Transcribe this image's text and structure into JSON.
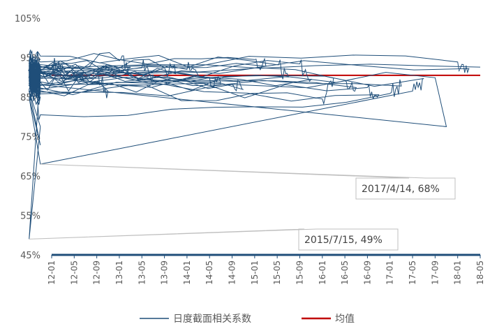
{
  "chart_data": {
    "type": "line",
    "x_tick_labels": [
      "12-01",
      "12-05",
      "12-09",
      "13-01",
      "13-05",
      "13-09",
      "14-01",
      "14-05",
      "14-09",
      "15-01",
      "15-05",
      "15-09",
      "16-01",
      "16-05",
      "16-09",
      "17-01",
      "17-05",
      "17-09",
      "18-01",
      "18-05"
    ],
    "y_tick_labels": [
      "45%",
      "55%",
      "65%",
      "75%",
      "85%",
      "95%",
      "105%"
    ],
    "ylim": [
      45,
      105
    ],
    "yticks": [
      45,
      55,
      65,
      75,
      85,
      95,
      105
    ],
    "grid": false,
    "legend_position": "bottom",
    "series": [
      {
        "name": "日度截面相关系数",
        "color": "#1f4e79",
        "points": [
          [
            "12-01",
            93.2
          ],
          [
            "12-01.5",
            92.4
          ],
          [
            "12-02",
            90.8
          ],
          [
            "12-02.5",
            89.6
          ],
          [
            "12-03",
            91.4
          ],
          [
            "12-03.5",
            88.9
          ],
          [
            "12-04",
            90.5
          ],
          [
            "12-04.5",
            92.1
          ],
          [
            "12-05",
            91.0
          ],
          [
            "12-05.5",
            89.7
          ],
          [
            "12-06",
            90.9
          ],
          [
            "12-06.5",
            91.8
          ],
          [
            "12-07",
            89.2
          ],
          [
            "12-07.5",
            90.4
          ],
          [
            "12-08",
            91.6
          ],
          [
            "12-08.5",
            88.8
          ],
          [
            "12-09",
            90.2
          ],
          [
            "12-09.5",
            86.5
          ],
          [
            "12-10",
            90.9
          ],
          [
            "12-10.5",
            89.5
          ],
          [
            "12-11",
            90.7
          ],
          [
            "12-11.5",
            88.6
          ],
          [
            "12-12",
            91.4
          ],
          [
            "12-12.5",
            92.8
          ],
          [
            "13-01",
            94.2
          ],
          [
            "13-01.5",
            92.5
          ],
          [
            "13-02",
            91.2
          ],
          [
            "13-02.5",
            90.0
          ],
          [
            "13-03",
            92.3
          ],
          [
            "13-03.5",
            91.1
          ],
          [
            "13-04",
            89.9
          ],
          [
            "13-04.5",
            91.7
          ],
          [
            "13-05",
            92.4
          ],
          [
            "13-05.5",
            90.6
          ],
          [
            "13-06",
            91.9
          ],
          [
            "13-06.5",
            94.6
          ],
          [
            "13-07",
            93.0
          ],
          [
            "13-07.5",
            91.5
          ],
          [
            "13-08",
            90.3
          ],
          [
            "13-08.5",
            91.8
          ],
          [
            "13-09",
            92.5
          ],
          [
            "13-09.5",
            90.9
          ],
          [
            "13-10",
            91.7
          ],
          [
            "13-10.5",
            90.1
          ],
          [
            "13-11",
            92.2
          ],
          [
            "13-11.5",
            91.0
          ],
          [
            "13-12",
            89.8
          ],
          [
            "13-12.5",
            91.4
          ],
          [
            "14-01",
            92.0
          ],
          [
            "14-01.5",
            90.5
          ],
          [
            "14-02",
            91.9
          ],
          [
            "14-02.5",
            89.4
          ],
          [
            "14-03",
            90.8
          ],
          [
            "14-03.5",
            88.0
          ],
          [
            "14-04",
            90.1
          ],
          [
            "14-04.5",
            91.3
          ],
          [
            "14-05",
            89.9
          ],
          [
            "14-05.5",
            88.4
          ],
          [
            "14-06",
            90.2
          ],
          [
            "14-06.5",
            87.8
          ],
          [
            "14-07",
            89.1
          ],
          [
            "14-07.5",
            87.3
          ],
          [
            "14-08",
            88.9
          ],
          [
            "14-08.5",
            86.6
          ],
          [
            "14-09",
            88.2
          ],
          [
            "14-09.5",
            86.9
          ],
          [
            "14-10",
            89.4
          ],
          [
            "14-10.5",
            88.1
          ],
          [
            "14-11",
            90.7
          ],
          [
            "14-11.5",
            89.2
          ],
          [
            "14-12",
            91.6
          ],
          [
            "14-12.5",
            93.9
          ],
          [
            "15-01",
            94.5
          ],
          [
            "15-01.5",
            92.8
          ],
          [
            "15-02",
            93.6
          ],
          [
            "15-02.5",
            91.9
          ],
          [
            "15-03",
            93.1
          ],
          [
            "15-03.5",
            91.2
          ],
          [
            "15-04",
            92.7
          ],
          [
            "15-04.5",
            95.4
          ],
          [
            "15-05",
            93.2
          ],
          [
            "15-05.5",
            90.1
          ],
          [
            "15-06",
            86.5
          ],
          [
            "15-06.5",
            77.5
          ],
          [
            "15-07",
            49.0
          ],
          [
            "15-07.5",
            92.2
          ],
          [
            "15-08",
            95.8
          ],
          [
            "15-08.5",
            90.3
          ],
          [
            "15-09",
            93.4
          ],
          [
            "15-09.5",
            89.5
          ],
          [
            "15-10",
            91.8
          ],
          [
            "15-10.5",
            88.7
          ],
          [
            "15-11",
            92.5
          ],
          [
            "15-11.5",
            89.4
          ],
          [
            "15-12",
            91.0
          ],
          [
            "15-12.5",
            88.1
          ],
          [
            "16-01",
            84.5
          ],
          [
            "16-01.5",
            89.8
          ],
          [
            "16-02",
            91.5
          ],
          [
            "16-02.5",
            88.4
          ],
          [
            "16-03",
            90.2
          ],
          [
            "16-03.5",
            87.9
          ],
          [
            "16-04",
            89.4
          ],
          [
            "16-04.5",
            91.2
          ],
          [
            "16-05",
            89.1
          ],
          [
            "16-05.5",
            87.4
          ],
          [
            "16-06",
            89.8
          ],
          [
            "16-06.5",
            91.0
          ],
          [
            "16-07",
            88.3
          ],
          [
            "16-07.5",
            86.5
          ],
          [
            "16-08",
            88.9
          ],
          [
            "16-08.5",
            85.8
          ],
          [
            "16-09",
            87.4
          ],
          [
            "16-09.5",
            85.6
          ],
          [
            "16-10",
            87.9
          ],
          [
            "16-10.5",
            86.2
          ],
          [
            "16-11",
            88.4
          ],
          [
            "16-11.5",
            85.1
          ],
          [
            "16-12",
            86.7
          ],
          [
            "16-12.5",
            80.5
          ],
          [
            "17-01",
            85.9
          ],
          [
            "17-01.5",
            87.8
          ],
          [
            "17-02",
            86.3
          ],
          [
            "17-02.5",
            88.1
          ],
          [
            "17-03",
            86.9
          ],
          [
            "17-03.5",
            72.8
          ],
          [
            "17-04",
            85.0
          ],
          [
            "17-04.5",
            68.0
          ],
          [
            "17-05",
            86.5
          ],
          [
            "17-05.5",
            89.7
          ],
          [
            "17-06",
            91.8
          ],
          [
            "17-06.5",
            88.2
          ],
          [
            "17-07",
            90.5
          ],
          [
            "17-07.5",
            87.6
          ],
          [
            "17-08",
            91.3
          ],
          [
            "17-08.5",
            88.0
          ],
          [
            "17-09",
            89.9
          ],
          [
            "17-09.5",
            77.5
          ],
          [
            "17-10",
            88.4
          ],
          [
            "17-10.5",
            91.1
          ],
          [
            "17-11",
            89.2
          ],
          [
            "17-11.5",
            91.8
          ],
          [
            "17-12",
            90.4
          ],
          [
            "17-12.5",
            92.6
          ],
          [
            "18-01",
            93.9
          ],
          [
            "18-01.5",
            92.2
          ],
          [
            "18-02",
            93.5
          ],
          [
            "18-02.5",
            91.4
          ],
          [
            "18-03",
            94.2
          ],
          [
            "18-03.5",
            92.7
          ],
          [
            "18-04",
            93.6
          ],
          [
            "18-04.5",
            91.9
          ],
          [
            "18-05",
            92.6
          ]
        ]
      },
      {
        "name": "均值",
        "color": "#c00000",
        "points": [
          [
            "12-01",
            90.5
          ],
          [
            "18-05",
            90.5
          ]
        ]
      }
    ],
    "annotations": [
      {
        "text": "2015/7/15, 49%",
        "x": "15-07",
        "y": 49
      },
      {
        "text": "2017/4/14, 68%",
        "x": "17-04.5",
        "y": 68
      }
    ]
  }
}
